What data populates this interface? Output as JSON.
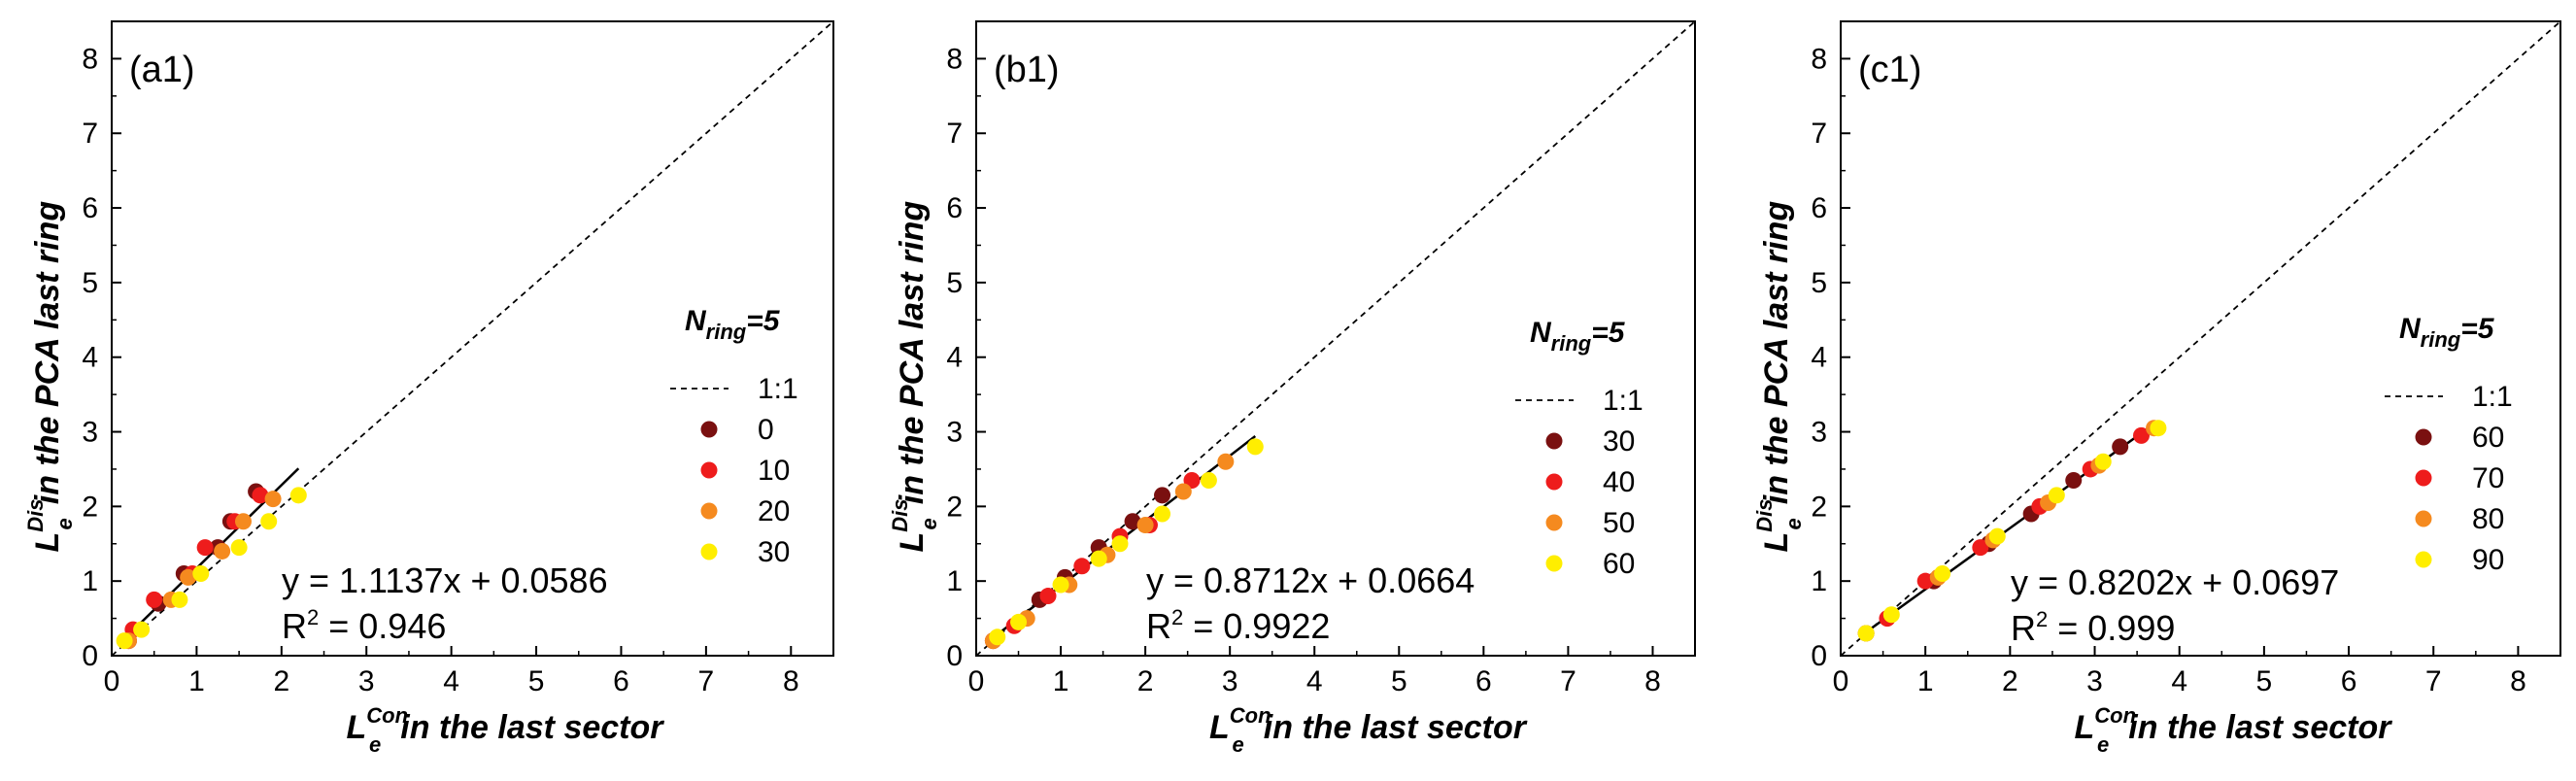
{
  "figure": {
    "legend_title_main": "N",
    "legend_title_sub": "ring",
    "legend_title_rest": "=5",
    "ref_line_label": "1:1",
    "x_label_main": "L",
    "x_label_sub": "e",
    "x_label_sup": "Con",
    "x_label_rest": "in the last sector",
    "y_label_main": "L",
    "y_label_sub": "e",
    "y_label_sup": "Dis",
    "y_label_rest": "in the PCA last ring",
    "r2_prefix": "R",
    "r2_sup": "2"
  },
  "chart_data": [
    {
      "type": "scatter",
      "panel_label": "(a1)",
      "xlim": [
        0,
        8.5
      ],
      "ylim": [
        0,
        8.5
      ],
      "xticks": [
        "0",
        "1",
        "2",
        "3",
        "4",
        "5",
        "6",
        "7",
        "8"
      ],
      "yticks": [
        "0",
        "1",
        "2",
        "3",
        "4",
        "5",
        "6",
        "7",
        "8"
      ],
      "fit": {
        "slope": 1.1137,
        "intercept": 0.0586,
        "x_range": [
          0.1,
          2.2
        ],
        "equation": "y = 1.1137x + 0.0586",
        "r2": "= 0.946"
      },
      "series": [
        {
          "name": "0",
          "color": "#7a1010",
          "points": [
            [
              0.2,
              0.2
            ],
            [
              0.55,
              0.7
            ],
            [
              0.85,
              1.1
            ],
            [
              1.25,
              1.45
            ],
            [
              1.4,
              1.8
            ],
            [
              1.7,
              2.2
            ]
          ]
        },
        {
          "name": "10",
          "color": "#ee1c1c",
          "points": [
            [
              0.25,
              0.35
            ],
            [
              0.5,
              0.75
            ],
            [
              0.95,
              1.1
            ],
            [
              1.1,
              1.45
            ],
            [
              1.45,
              1.8
            ],
            [
              1.75,
              2.15
            ]
          ]
        },
        {
          "name": "20",
          "color": "#f58a1f",
          "points": [
            [
              0.2,
              0.2
            ],
            [
              0.7,
              0.75
            ],
            [
              0.9,
              1.05
            ],
            [
              1.3,
              1.4
            ],
            [
              1.55,
              1.8
            ],
            [
              1.9,
              2.1
            ]
          ]
        },
        {
          "name": "30",
          "color": "#ffee00",
          "points": [
            [
              0.15,
              0.2
            ],
            [
              0.35,
              0.35
            ],
            [
              0.8,
              0.75
            ],
            [
              1.05,
              1.1
            ],
            [
              1.5,
              1.45
            ],
            [
              1.85,
              1.8
            ],
            [
              2.2,
              2.15
            ]
          ]
        }
      ]
    },
    {
      "type": "scatter",
      "panel_label": "(b1)",
      "xlim": [
        0,
        8.5
      ],
      "ylim": [
        0,
        8.5
      ],
      "xticks": [
        "0",
        "1",
        "2",
        "3",
        "4",
        "5",
        "6",
        "7",
        "8"
      ],
      "yticks": [
        "0",
        "1",
        "2",
        "3",
        "4",
        "5",
        "6",
        "7",
        "8"
      ],
      "fit": {
        "slope": 0.8712,
        "intercept": 0.0664,
        "x_range": [
          0.15,
          3.3
        ],
        "equation": "y = 0.8712x + 0.0664",
        "r2": "= 0.9922"
      },
      "series": [
        {
          "name": "30",
          "color": "#7a1010",
          "points": [
            [
              0.2,
              0.2
            ],
            [
              0.75,
              0.75
            ],
            [
              1.05,
              1.05
            ],
            [
              1.45,
              1.45
            ],
            [
              1.85,
              1.8
            ],
            [
              2.2,
              2.15
            ]
          ]
        },
        {
          "name": "40",
          "color": "#ee1c1c",
          "points": [
            [
              0.2,
              0.2
            ],
            [
              0.45,
              0.4
            ],
            [
              0.85,
              0.8
            ],
            [
              1.25,
              1.2
            ],
            [
              1.7,
              1.6
            ],
            [
              2.05,
              1.75
            ],
            [
              2.55,
              2.35
            ]
          ]
        },
        {
          "name": "50",
          "color": "#f58a1f",
          "points": [
            [
              0.2,
              0.2
            ],
            [
              0.6,
              0.5
            ],
            [
              1.1,
              0.95
            ],
            [
              1.55,
              1.35
            ],
            [
              2.0,
              1.75
            ],
            [
              2.45,
              2.2
            ],
            [
              2.95,
              2.6
            ]
          ]
        },
        {
          "name": "60",
          "color": "#ffee00",
          "points": [
            [
              0.25,
              0.25
            ],
            [
              0.5,
              0.45
            ],
            [
              1.0,
              0.95
            ],
            [
              1.45,
              1.3
            ],
            [
              1.7,
              1.5
            ],
            [
              2.2,
              1.9
            ],
            [
              2.75,
              2.35
            ],
            [
              3.3,
              2.8
            ]
          ]
        }
      ]
    },
    {
      "type": "scatter",
      "panel_label": "(c1)",
      "xlim": [
        0,
        8.5
      ],
      "ylim": [
        0,
        8.5
      ],
      "xticks": [
        "0",
        "1",
        "2",
        "3",
        "4",
        "5",
        "6",
        "7",
        "8"
      ],
      "yticks": [
        "0",
        "1",
        "2",
        "3",
        "4",
        "5",
        "6",
        "7",
        "8"
      ],
      "fit": {
        "slope": 0.8202,
        "intercept": 0.0697,
        "x_range": [
          0.25,
          3.75
        ],
        "equation": "y = 0.8202x + 0.0697",
        "r2": "= 0.999"
      },
      "series": [
        {
          "name": "60",
          "color": "#7a1010",
          "points": [
            [
              0.3,
              0.3
            ],
            [
              1.1,
              1.0
            ],
            [
              1.75,
              1.5
            ],
            [
              2.25,
              1.9
            ],
            [
              2.75,
              2.35
            ],
            [
              3.3,
              2.8
            ]
          ]
        },
        {
          "name": "70",
          "color": "#ee1c1c",
          "points": [
            [
              0.55,
              0.5
            ],
            [
              1.0,
              1.0
            ],
            [
              1.65,
              1.45
            ],
            [
              2.35,
              2.0
            ],
            [
              2.95,
              2.5
            ],
            [
              3.55,
              2.95
            ]
          ]
        },
        {
          "name": "80",
          "color": "#f58a1f",
          "points": [
            [
              0.3,
              0.3
            ],
            [
              1.15,
              1.05
            ],
            [
              1.8,
              1.55
            ],
            [
              2.45,
              2.05
            ],
            [
              3.05,
              2.55
            ],
            [
              3.7,
              3.05
            ]
          ]
        },
        {
          "name": "90",
          "color": "#ffee00",
          "points": [
            [
              0.3,
              0.3
            ],
            [
              0.6,
              0.55
            ],
            [
              1.2,
              1.1
            ],
            [
              1.85,
              1.6
            ],
            [
              2.55,
              2.15
            ],
            [
              3.1,
              2.6
            ],
            [
              3.75,
              3.05
            ]
          ]
        }
      ]
    }
  ]
}
